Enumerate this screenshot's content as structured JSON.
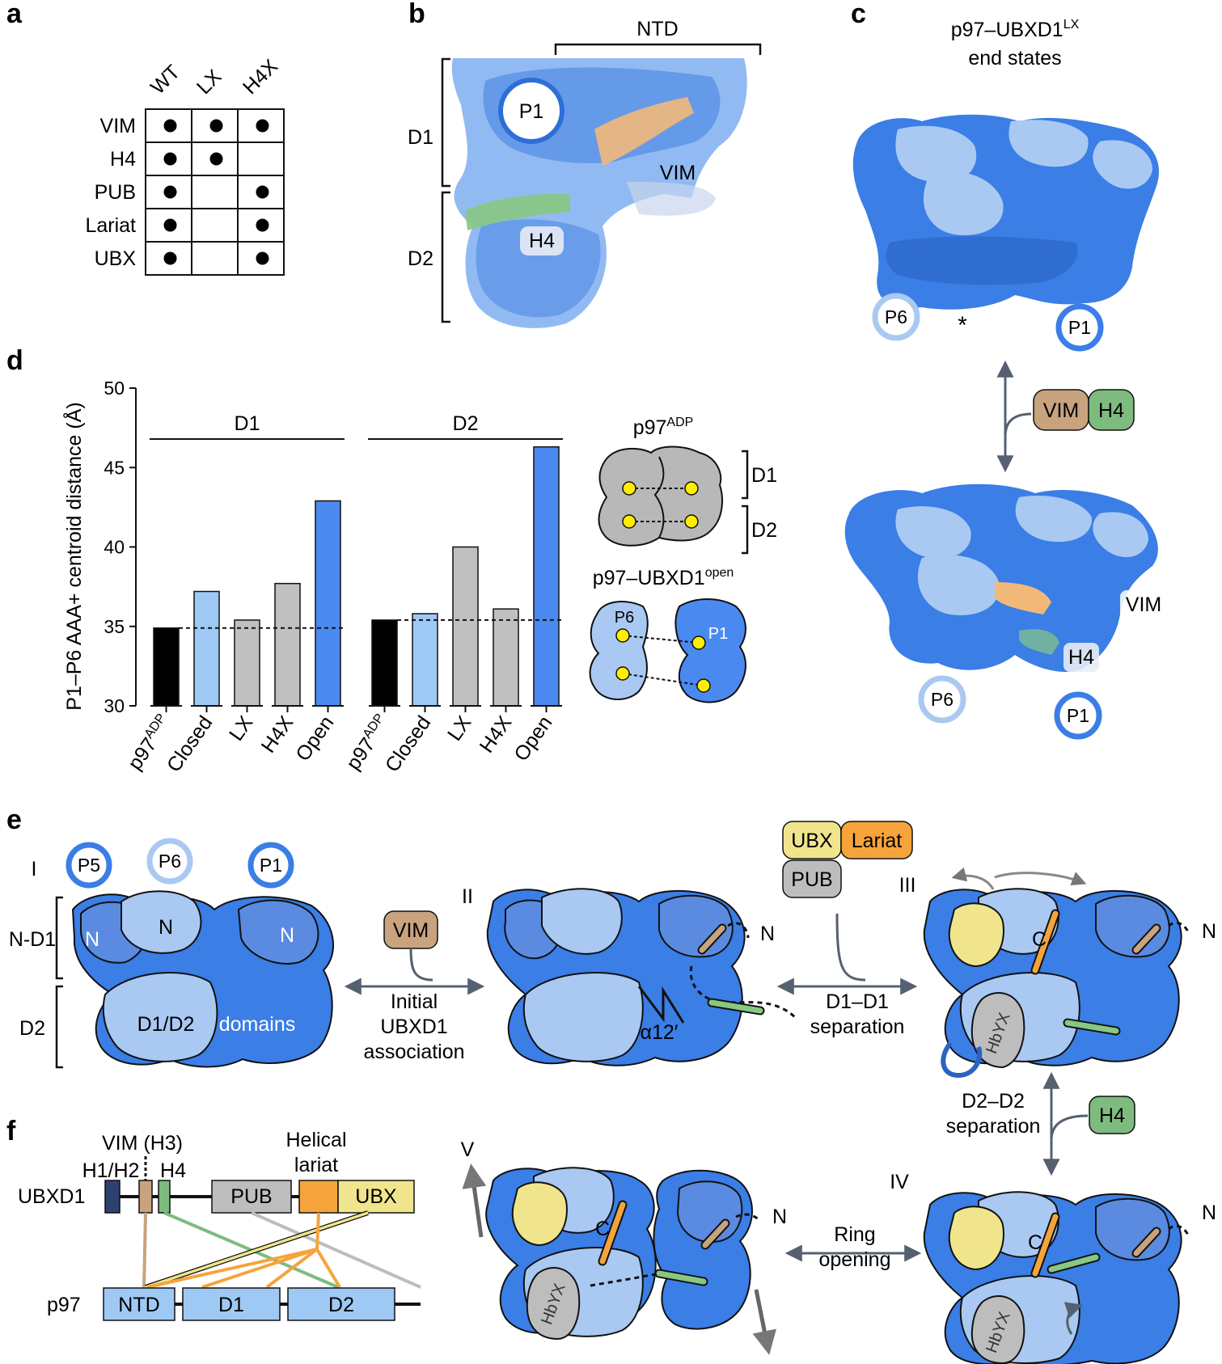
{
  "panel_letters": [
    "a",
    "b",
    "c",
    "d",
    "e",
    "f"
  ],
  "panel_a": {
    "columns": [
      "WT",
      "LX",
      "H4X"
    ],
    "rows": [
      "VIM",
      "H4",
      "PUB",
      "Lariat",
      "UBX"
    ],
    "presence": [
      [
        1,
        1,
        1
      ],
      [
        1,
        1,
        0
      ],
      [
        1,
        0,
        1
      ],
      [
        1,
        0,
        1
      ],
      [
        1,
        0,
        1
      ]
    ]
  },
  "panel_b": {
    "labels": {
      "ntd": "NTD",
      "d1": "D1",
      "d2": "D2",
      "p1": "P1",
      "vim": "VIM",
      "h4": "H4"
    }
  },
  "panel_c": {
    "title_main": "p97–UBXD1",
    "title_sup": "LX",
    "title_line2": "end states",
    "top": {
      "p6": "P6",
      "p1": "P1",
      "asterisk": "*"
    },
    "bottom": {
      "p6": "P6",
      "p1": "P1",
      "vim": "VIM",
      "h4": "H4"
    },
    "switch": {
      "vim": "VIM",
      "h4": "H4"
    }
  },
  "chart_data": {
    "type": "bar",
    "ylabel": "P1–P6 AAA+ centroid distance (Å)",
    "ylim": [
      30,
      50
    ],
    "yticks": [
      30,
      35,
      40,
      45,
      50
    ],
    "groups": [
      {
        "name": "D1",
        "categories": [
          "p97ADP",
          "Closed",
          "LX",
          "H4X",
          "Open"
        ],
        "values": [
          34.9,
          37.2,
          35.4,
          37.7,
          42.9
        ]
      },
      {
        "name": "D2",
        "categories": [
          "p97ADP",
          "Closed",
          "LX",
          "H4X",
          "Open"
        ],
        "values": [
          35.4,
          35.8,
          40.0,
          36.1,
          46.3
        ]
      }
    ],
    "reference_line": 35.0,
    "colors": {
      "p97ADP": "#000000",
      "Closed": "#9ec9f5",
      "LX": "#c0c0c0",
      "H4X": "#c0c0c0",
      "Open": "#4a8af0"
    }
  },
  "panel_d_tick_labels": [
    {
      "main": "p97",
      "sup": "ADP"
    },
    {
      "main": "Closed"
    },
    {
      "main": "LX"
    },
    {
      "main": "H4X"
    },
    {
      "main": "Open"
    }
  ],
  "panel_d_schematic": {
    "adp_main": "p97",
    "adp_sup": "ADP",
    "open_main": "p97–UBXD1",
    "open_sup": "open",
    "d1": "D1",
    "d2": "D2",
    "p6": "P6",
    "p1": "P1"
  },
  "panel_e": {
    "states": [
      "I",
      "II",
      "III",
      "IV",
      "V"
    ],
    "protomers": [
      "P5",
      "P6",
      "P1"
    ],
    "side_labels": [
      "N-D1",
      "D2"
    ],
    "n_labels": [
      "N",
      "N",
      "N"
    ],
    "domains_text": [
      "D1/D2",
      "domains"
    ],
    "alpha": "α12′",
    "n_term": "N",
    "c_term": "C",
    "hbyx": "HbYX",
    "boxes": {
      "vim": "VIM",
      "ubx": "UBX",
      "lariat": "Lariat",
      "pub": "PUB",
      "h4": "H4"
    },
    "transitions": {
      "t1": [
        "Initial",
        "UBXD1",
        "association"
      ],
      "t2": [
        "D1–D1",
        "separation"
      ],
      "t3": [
        "D2–D2",
        "separation"
      ],
      "t4": [
        "Ring",
        "opening"
      ]
    }
  },
  "panel_f": {
    "helix_labels": {
      "vim": "VIM (H3)",
      "h1h2": "H1/H2",
      "h4": "H4",
      "helical": "Helical",
      "lariat": "lariat"
    },
    "ubxd1": {
      "name": "UBXD1",
      "pub": "PUB",
      "ubx": "UBX"
    },
    "p97": {
      "name": "p97",
      "ntd": "NTD",
      "d1": "D1",
      "d2": "D2"
    },
    "colors": {
      "h1h2": "#2c4170",
      "vim": "#c8a37e",
      "h4": "#7dbb7f",
      "pub": "#bdbdbd",
      "lariat": "#f5a43c",
      "ubx": "#f0e58c",
      "p97": "#9ec9f5"
    }
  }
}
